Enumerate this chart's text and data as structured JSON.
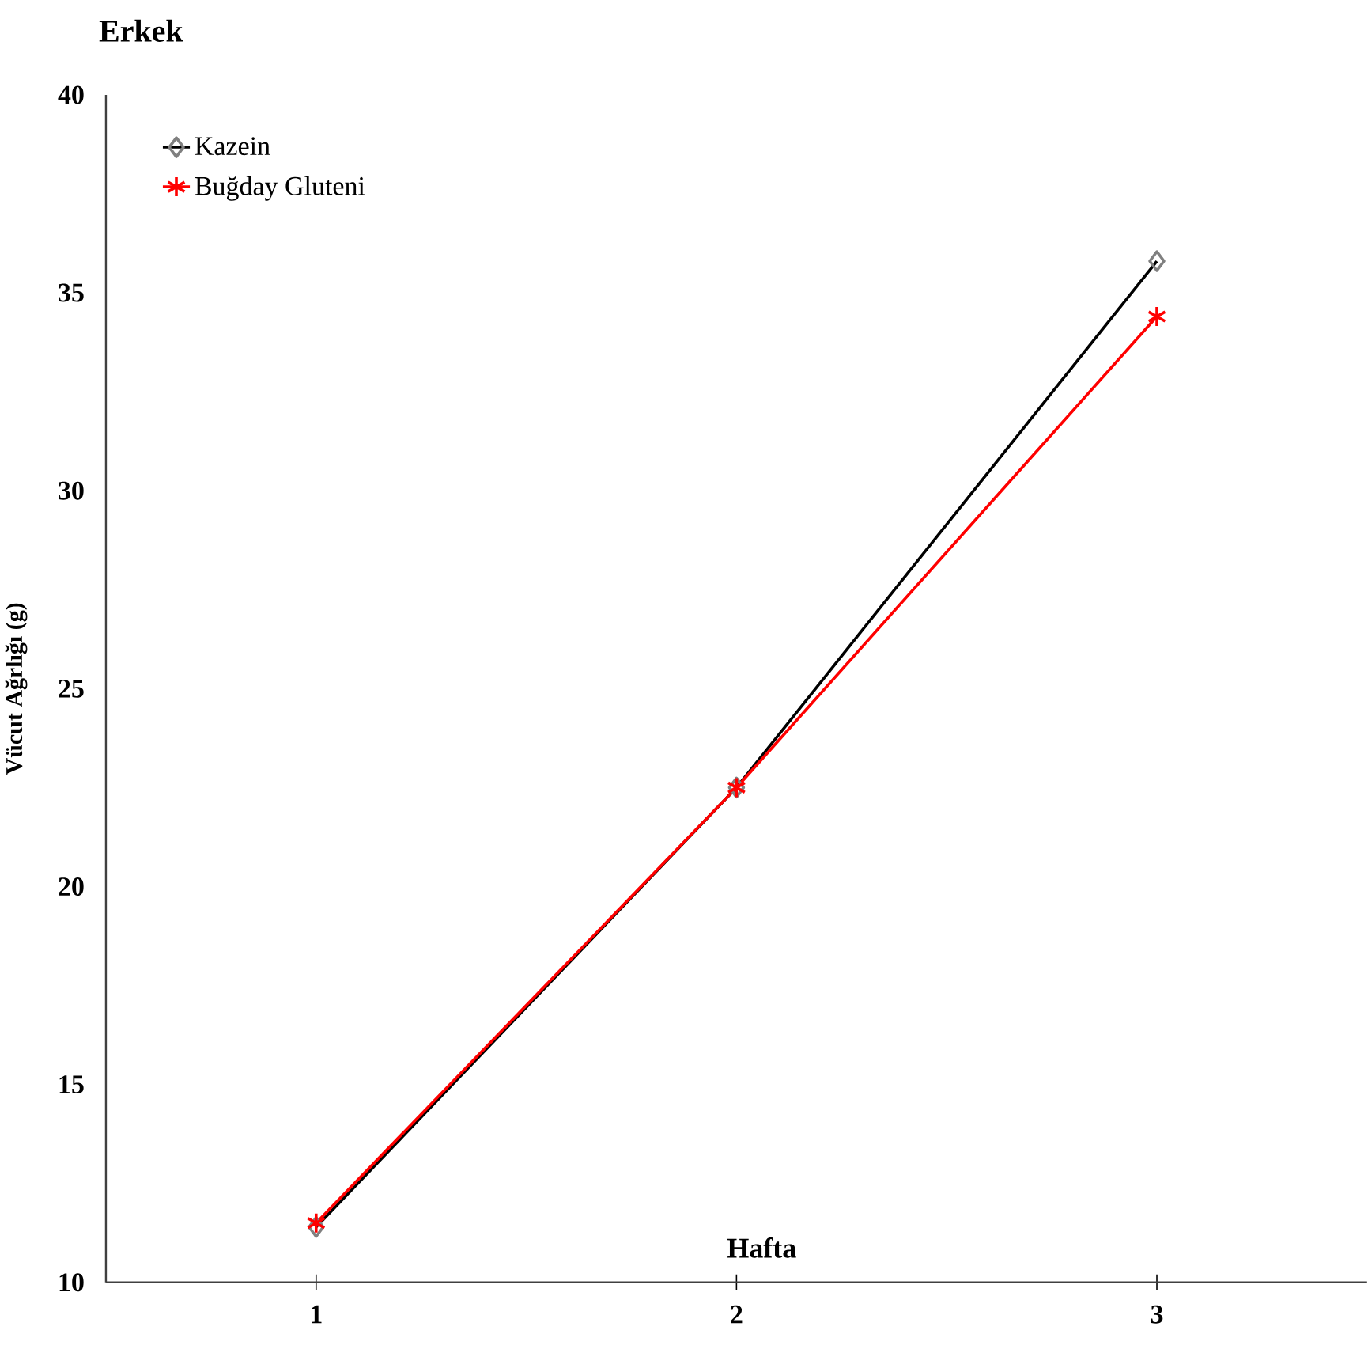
{
  "chart_data": {
    "type": "line",
    "title": "Erkek",
    "xlabel": "Hafta",
    "ylabel": "Vücut Ağrlığı (g)",
    "x": [
      1,
      2,
      3
    ],
    "series": [
      {
        "name": "Kazein",
        "color": "#000000",
        "marker": "diamond",
        "values": [
          11.4,
          22.5,
          35.8
        ]
      },
      {
        "name": "Buğday Gluteni",
        "color": "#ff0000",
        "marker": "cross",
        "values": [
          11.5,
          22.5,
          34.4
        ]
      }
    ],
    "xlim": [
      0.5,
      3.5
    ],
    "xticks": [
      1,
      2,
      3
    ],
    "ylim": [
      10,
      40
    ],
    "yticks": [
      10,
      15,
      20,
      25,
      30,
      35,
      40
    ],
    "grid": false,
    "legend": "top left",
    "line_style": "solid"
  }
}
